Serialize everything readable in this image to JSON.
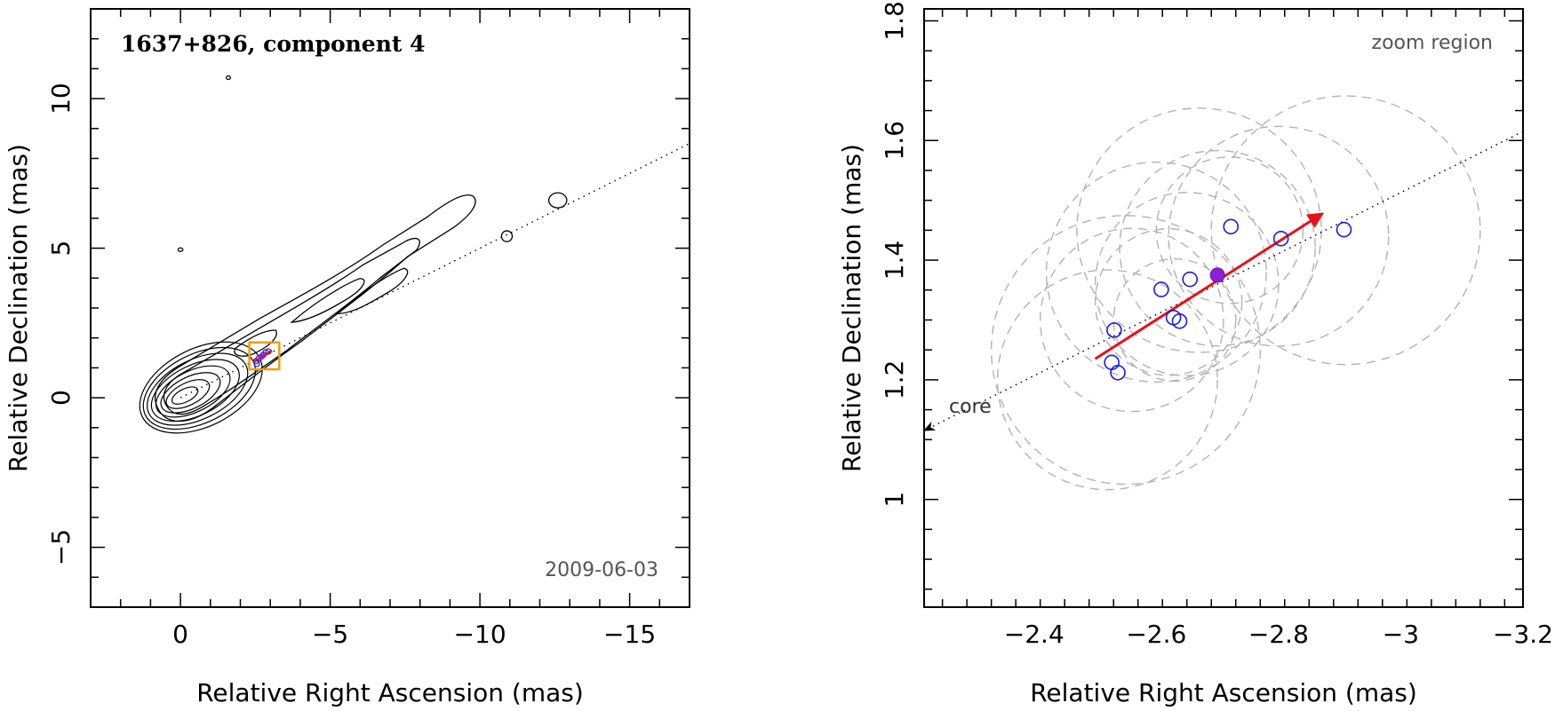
{
  "chart_data": [
    {
      "type": "contour",
      "title": "1637+826, component 4",
      "date_label": "2009-06-03",
      "xlabel": "Relative Right Ascension (mas)",
      "ylabel": "Relative Declination (mas)",
      "xlim": [
        3,
        -17
      ],
      "ylim": [
        -7,
        13
      ],
      "xticks": [
        0,
        -5,
        -10,
        -15
      ],
      "xtick_labels": [
        "0",
        "−5",
        "−10",
        "−15"
      ],
      "yticks": [
        -5,
        0,
        5,
        10
      ],
      "ytick_labels": [
        "−5",
        "0",
        "5",
        "10"
      ],
      "jet_axis": {
        "from": [
          0,
          0
        ],
        "to": [
          -17,
          8.5
        ]
      },
      "zoom_box": {
        "x": [
          -2.3,
          -3.3
        ],
        "y": [
          0.95,
          1.85
        ]
      },
      "core_contours": [
        0.35,
        0.6,
        0.85,
        1.1,
        1.35,
        1.6,
        1.85,
        2.1
      ],
      "small_components": [
        {
          "x": -12.6,
          "y": 6.6,
          "rx": 0.3,
          "ry": 0.25
        },
        {
          "x": -10.9,
          "y": 5.4,
          "rx": 0.18,
          "ry": 0.18
        },
        {
          "x": -1.6,
          "y": 10.7,
          "rx": 0.07,
          "ry": 0.06
        },
        {
          "x": 0.0,
          "y": 4.95,
          "rx": 0.08,
          "ry": 0.06
        }
      ],
      "marker": {
        "x": -2.7,
        "y": 1.37
      }
    },
    {
      "type": "scatter",
      "annotation": "zoom region",
      "core_label": "core",
      "xlabel": "Relative Right Ascension (mas)",
      "ylabel": "Relative Declination (mas)",
      "xlim": [
        -2.22,
        -3.2
      ],
      "ylim": [
        0.82,
        1.82
      ],
      "xticks": [
        -2.4,
        -2.6,
        -2.8,
        -3,
        -3.2
      ],
      "xtick_labels": [
        "−2.4",
        "−2.6",
        "−2.8",
        "−3",
        "−3.2"
      ],
      "yticks": [
        1,
        1.2,
        1.4,
        1.6,
        1.8
      ],
      "ytick_labels": [
        "1",
        "1.2",
        "1.4",
        "1.6",
        "1.8"
      ],
      "points": [
        {
          "x": -2.527,
          "y": 1.229
        },
        {
          "x": -2.537,
          "y": 1.212
        },
        {
          "x": -2.531,
          "y": 1.283
        },
        {
          "x": -2.608,
          "y": 1.351
        },
        {
          "x": -2.628,
          "y": 1.304
        },
        {
          "x": -2.638,
          "y": 1.298
        },
        {
          "x": -2.655,
          "y": 1.368
        },
        {
          "x": -2.722,
          "y": 1.456
        },
        {
          "x": -2.804,
          "y": 1.436
        },
        {
          "x": -2.907,
          "y": 1.451
        }
      ],
      "mean_point": {
        "x": -2.7,
        "y": 1.375
      },
      "motion_vector": {
        "from": [
          -2.5,
          1.235
        ],
        "to": [
          -2.872,
          1.478
        ]
      },
      "jet_axis": {
        "from": [
          -2.22,
          1.115
        ],
        "to": [
          -3.2,
          1.615
        ]
      },
      "uncertainty_circles": [
        {
          "x": -2.52,
          "y": 1.2,
          "r": 0.18
        },
        {
          "x": -2.55,
          "y": 1.25,
          "r": 0.22
        },
        {
          "x": -2.56,
          "y": 1.3,
          "r": 0.15
        },
        {
          "x": -2.6,
          "y": 1.38,
          "r": 0.18
        },
        {
          "x": -2.62,
          "y": 1.33,
          "r": 0.12
        },
        {
          "x": -2.63,
          "y": 1.3,
          "r": 0.1
        },
        {
          "x": -2.65,
          "y": 1.36,
          "r": 0.15
        },
        {
          "x": -2.67,
          "y": 1.45,
          "r": 0.2
        },
        {
          "x": -2.7,
          "y": 1.42,
          "r": 0.16
        },
        {
          "x": -2.72,
          "y": 1.45,
          "r": 0.12
        },
        {
          "x": -2.8,
          "y": 1.44,
          "r": 0.18
        },
        {
          "x": -2.91,
          "y": 1.45,
          "r": 0.22
        }
      ]
    }
  ]
}
